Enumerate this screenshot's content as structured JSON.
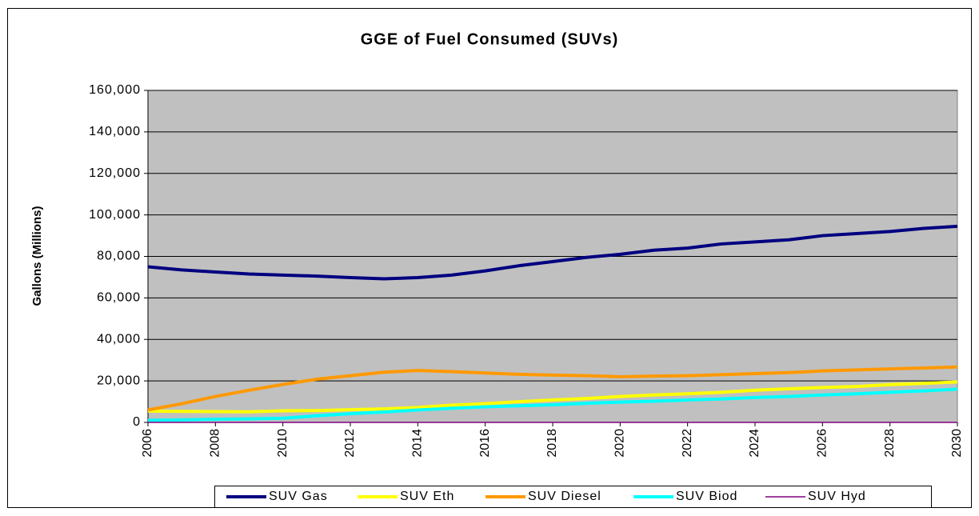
{
  "chart_data": {
    "type": "line",
    "title": "GGE of Fuel Consumed (SUVs)",
    "y_label": "Gallons (Millions)",
    "x": [
      2006,
      2007,
      2008,
      2009,
      2010,
      2011,
      2012,
      2013,
      2014,
      2015,
      2016,
      2017,
      2018,
      2019,
      2020,
      2021,
      2022,
      2023,
      2024,
      2025,
      2026,
      2027,
      2028,
      2029,
      2030
    ],
    "xlim": [
      2006,
      2030
    ],
    "xticks": [
      2006,
      2008,
      2010,
      2012,
      2014,
      2016,
      2018,
      2020,
      2022,
      2024,
      2026,
      2028,
      2030
    ],
    "ylim": [
      0,
      160000
    ],
    "yticks": [
      0,
      {
        "value": 20000,
        "label": "20,000"
      },
      {
        "value": 40000,
        "label": "40,000"
      },
      {
        "value": 60000,
        "label": "60,000"
      },
      {
        "value": 80000,
        "label": "80,000"
      },
      {
        "value": 100000,
        "label": "100,000"
      },
      {
        "value": 120000,
        "label": "120,000"
      },
      {
        "value": 140000,
        "label": "140,000"
      },
      {
        "value": 160000,
        "label": "160,000"
      }
    ],
    "grid": true,
    "legend": "bottom",
    "background": "#c0c0c0",
    "series": [
      {
        "name": "SUV Gas",
        "color": "#000080",
        "width": 4,
        "values": [
          75000,
          73500,
          72500,
          71500,
          71000,
          70500,
          69800,
          69200,
          69800,
          71000,
          73000,
          75500,
          77500,
          79500,
          81000,
          83000,
          84000,
          86000,
          87000,
          88000,
          90000,
          91000,
          92000,
          93500,
          94500
        ]
      },
      {
        "name": "SUV Eth",
        "color": "#ffff00",
        "width": 4,
        "values": [
          5500,
          5300,
          5200,
          5100,
          5600,
          5700,
          6100,
          6500,
          7200,
          8300,
          9000,
          10000,
          10800,
          11500,
          12500,
          13200,
          13800,
          14500,
          15500,
          16200,
          16800,
          17300,
          18200,
          18800,
          19500
        ]
      },
      {
        "name": "SUV Diesel",
        "color": "#ff9900",
        "width": 4,
        "values": [
          6000,
          9000,
          12500,
          15500,
          18300,
          20800,
          22500,
          24200,
          25000,
          24500,
          23800,
          23200,
          22800,
          22500,
          22000,
          22300,
          22500,
          23000,
          23500,
          24000,
          24800,
          25300,
          25800,
          26200,
          26700
        ]
      },
      {
        "name": "SUV Biod",
        "color": "#00ffff",
        "width": 4,
        "values": [
          1000,
          1200,
          1500,
          1700,
          2000,
          3200,
          4200,
          5000,
          6000,
          6800,
          7500,
          8000,
          8500,
          9200,
          9800,
          10200,
          10800,
          11300,
          12000,
          12500,
          13200,
          13800,
          14500,
          15200,
          16000
        ]
      },
      {
        "name": "SUV Hyd",
        "color": "#800080",
        "width": 1.5,
        "values": [
          0,
          0,
          0,
          0,
          0,
          0,
          0,
          0,
          0,
          0,
          0,
          0,
          0,
          0,
          0,
          0,
          0,
          0,
          0,
          0,
          0,
          0,
          0,
          0,
          0
        ]
      }
    ]
  }
}
